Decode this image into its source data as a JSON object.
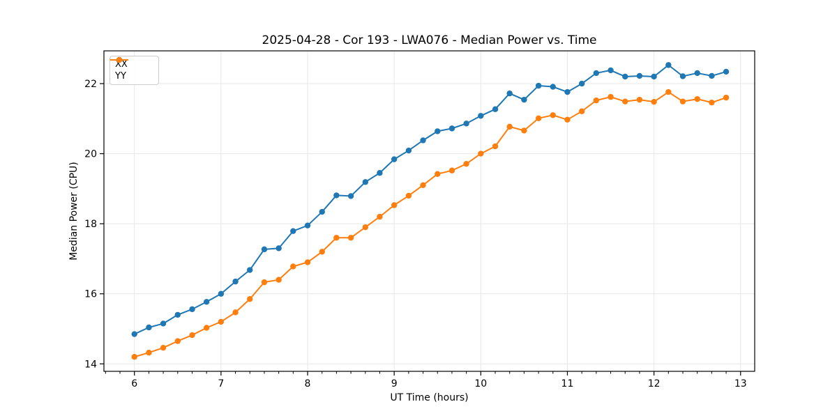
{
  "chart_data": {
    "type": "line",
    "title": "2025-04-28 - Cor 193 - LWA076 - Median Power vs. Time",
    "xlabel": "UT Time (hours)",
    "ylabel": "Median Power (CPU)",
    "xlim": [
      5.648,
      13.163
    ],
    "ylim": [
      13.787,
      22.935
    ],
    "x_major_ticks": [
      6,
      7,
      8,
      9,
      10,
      11,
      12,
      13
    ],
    "x_minor_divisions": 6,
    "y_major_ticks": [
      14,
      16,
      18,
      20,
      22
    ],
    "grid": true,
    "grid_color": "#e7e7e7",
    "spine_color": "#000000",
    "legend": {
      "position": "upper-left",
      "entries": [
        "XX",
        "YY"
      ]
    },
    "x": [
      6.0,
      6.167,
      6.333,
      6.5,
      6.667,
      6.833,
      7.0,
      7.167,
      7.333,
      7.5,
      7.667,
      7.833,
      8.0,
      8.167,
      8.333,
      8.5,
      8.667,
      8.833,
      9.0,
      9.167,
      9.333,
      9.5,
      9.667,
      9.833,
      10.0,
      10.167,
      10.333,
      10.5,
      10.667,
      10.833,
      11.0,
      11.167,
      11.333,
      11.5,
      11.667,
      11.833,
      12.0,
      12.167,
      12.333,
      12.5,
      12.667,
      12.833
    ],
    "series": [
      {
        "name": "XX",
        "color": "#1f77b4",
        "marker": "circle",
        "values": [
          14.85,
          15.04,
          15.15,
          15.4,
          15.56,
          15.77,
          16.0,
          16.35,
          16.68,
          17.27,
          17.3,
          17.79,
          17.95,
          18.34,
          18.81,
          18.79,
          19.19,
          19.45,
          19.84,
          20.09,
          20.38,
          20.64,
          20.72,
          20.86,
          21.08,
          21.27,
          21.72,
          21.54,
          21.94,
          21.91,
          21.76,
          22.0,
          22.3,
          22.38,
          22.2,
          22.22,
          22.2,
          22.53,
          22.21,
          22.3,
          22.22,
          22.34
        ]
      },
      {
        "name": "YY",
        "color": "#ff7f0e",
        "marker": "circle",
        "values": [
          14.2,
          14.32,
          14.46,
          14.65,
          14.82,
          15.03,
          15.2,
          15.47,
          15.85,
          16.33,
          16.4,
          16.78,
          16.9,
          17.2,
          17.6,
          17.6,
          17.9,
          18.2,
          18.53,
          18.8,
          19.1,
          19.42,
          19.52,
          19.71,
          20.0,
          20.21,
          20.77,
          20.66,
          21.01,
          21.1,
          20.97,
          21.21,
          21.52,
          21.62,
          21.49,
          21.54,
          21.48,
          21.76,
          21.49,
          21.56,
          21.46,
          21.6
        ]
      }
    ]
  }
}
